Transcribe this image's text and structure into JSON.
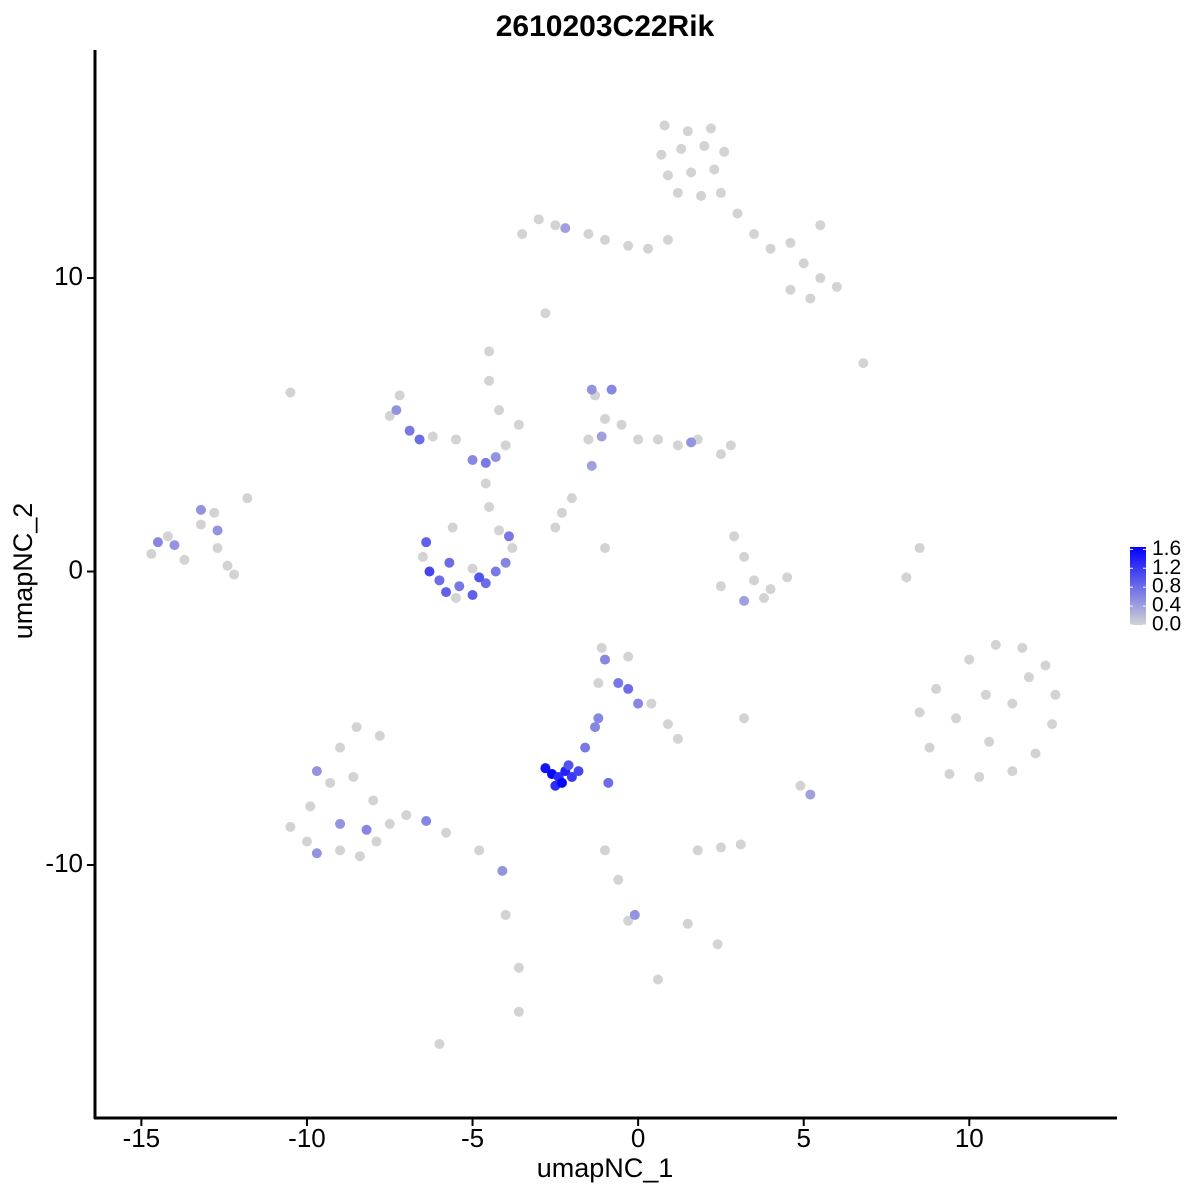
{
  "chart_data": {
    "type": "scatter",
    "title": "2610203C22Rik",
    "x_label": "umapNC_1",
    "y_label": "umapNC_2",
    "xlim": [
      -16.4,
      14.46
    ],
    "ylim": [
      -18.62,
      17.77
    ],
    "xticks": [
      -15,
      -10,
      -5,
      0,
      5,
      10
    ],
    "yticks": [
      -10,
      0,
      10
    ],
    "color_low": "#d3d3d3",
    "color_high": "#0000ff",
    "clim": [
      0,
      1.65
    ],
    "cticks": [
      {
        "value": 0,
        "label": "0.0"
      },
      0.4,
      0.8,
      1.2,
      1.6
    ],
    "x": [
      0.8,
      1.5,
      2.2,
      0.7,
      1.3,
      2,
      2.6,
      0.9,
      1.6,
      2.3,
      1.2,
      1.9,
      2.5,
      3,
      3.5,
      4,
      4.6,
      5,
      5.5,
      6,
      5.2,
      4.6,
      5.5,
      0.9,
      0.3,
      -0.3,
      -3.5,
      -3,
      -2.5,
      -1.5,
      -1,
      -2.2,
      -2.8,
      6.8,
      -10.5,
      -7.5,
      -7.2,
      -6.2,
      -5.5,
      -4,
      -4.2,
      -4.5,
      -4.5,
      -3.6,
      -7.3,
      -6.9,
      -6.6,
      -5,
      -4.6,
      -4.3,
      -4.6,
      -4.5,
      -6.5,
      -5.5,
      -3.8,
      -4.2,
      -5.6,
      -5,
      -6.4,
      -6.3,
      -6,
      -5.8,
      -5.4,
      -5,
      -4.6,
      -4.3,
      -4,
      -3.9,
      -5.7,
      -4.8,
      -14.7,
      -14.2,
      -13.7,
      -13.2,
      -12.7,
      -12.4,
      -12.8,
      -11.8,
      -12.2,
      -14.5,
      -14,
      -13.2,
      -12.7,
      -1.3,
      -1,
      -0.5,
      0,
      0.6,
      1.2,
      1.8,
      2.5,
      2.8,
      -1.5,
      -2,
      -2.3,
      -1.4,
      -0.8,
      -1.1,
      1.6,
      -1.4,
      -2.5,
      -1,
      2.9,
      3.2,
      3.5,
      2.5,
      4,
      4.5,
      3.8,
      3.2,
      8.1,
      8.5,
      9,
      10,
      10.8,
      11.6,
      12.3,
      12.6,
      12.5,
      12,
      11.3,
      10.3,
      9.4,
      8.8,
      8.5,
      9.6,
      10.5,
      11.3,
      10.6,
      11.8,
      -1.1,
      -0.3,
      -1.2,
      0.4,
      0.9,
      1.2,
      -1,
      -0.6,
      -0.3,
      0,
      -1.2,
      -2.8,
      -2.6,
      -2.4,
      -2.2,
      -2,
      -1.8,
      -2.5,
      -2.3,
      -2.1,
      -1.6,
      -1.3,
      -0.9,
      -10.5,
      -10,
      -9,
      -8.4,
      -7.9,
      -7.5,
      -8,
      -8.6,
      -9.3,
      -9.9,
      -9,
      -8.5,
      -7.8,
      -7,
      -5.8,
      -4.8,
      -9.7,
      -9,
      -8.2,
      -9.7,
      -6.4,
      -4.1,
      -4,
      -3.6,
      -3.6,
      -6,
      -1,
      -0.6,
      -0.3,
      1.5,
      2.4,
      0.6,
      -0.1,
      1.8,
      2.5,
      3.1,
      4.9,
      5.2,
      3.2
    ],
    "values": [
      15.2,
      15,
      15.1,
      14.2,
      14.4,
      14.5,
      14.3,
      13.5,
      13.6,
      13.7,
      12.9,
      12.8,
      12.9,
      12.2,
      11.5,
      11,
      11.2,
      10.5,
      10,
      9.7,
      9.3,
      9.6,
      11.8,
      11.3,
      11,
      11.1,
      11.5,
      12,
      11.8,
      11.5,
      11.3,
      11.7,
      8.8,
      7.1,
      6.1,
      5.3,
      6,
      4.6,
      4.5,
      4.3,
      5.5,
      6.5,
      7.5,
      5,
      5.5,
      4.8,
      4.5,
      3.8,
      3.7,
      3.9,
      3,
      2.2,
      0.5,
      -0.9,
      0.8,
      1.4,
      1.5,
      0.1,
      1,
      0,
      -0.3,
      -0.7,
      -0.5,
      -0.8,
      -0.4,
      0,
      0.3,
      1.2,
      0.3,
      -0.2,
      0.6,
      1.2,
      0.4,
      1.6,
      0.8,
      0.2,
      2,
      2.5,
      -0.1,
      1,
      0.9,
      2.1,
      1.4,
      6,
      5.2,
      5,
      4.5,
      4.5,
      4.3,
      4.5,
      4,
      4.3,
      4.5,
      2.5,
      2,
      6.2,
      6.2,
      4.6,
      4.4,
      3.6,
      1.5,
      0.8,
      1.2,
      0.5,
      -0.3,
      -0.5,
      -0.6,
      -0.2,
      -0.9,
      -1,
      -0.2,
      0.8,
      -4,
      -3,
      -2.5,
      -2.6,
      -3.2,
      -4.2,
      -5.2,
      -6.2,
      -6.8,
      -7,
      -6.9,
      -6,
      -4.8,
      -5,
      -4.2,
      -4.5,
      -5.8,
      -3.6,
      -2.6,
      -2.9,
      -3.8,
      -4.5,
      -5.2,
      -5.7,
      -3,
      -3.8,
      -4,
      -4.5,
      -5,
      -6.7,
      -6.9,
      -7,
      -6.8,
      -7,
      -6.8,
      -7.3,
      -7.2,
      -6.6,
      -6,
      -5.3,
      -7.2,
      -8.7,
      -9.2,
      -9.5,
      -9.7,
      -9.2,
      -8.6,
      -7.8,
      -7,
      -7.2,
      -8,
      -6,
      -5.3,
      -5.6,
      -8.3,
      -8.9,
      -9.5,
      -6.8,
      -8.6,
      -8.8,
      -9.6,
      -8.5,
      -10.2,
      -11.7,
      -13.5,
      -15,
      -16.1,
      -9.5,
      -10.5,
      -11.9,
      -12,
      -12.7,
      -13.9,
      -11.7,
      -9.5,
      -9.4,
      -9.3,
      -7.3,
      -7.6,
      -5
    ],
    "expression": [
      0,
      0,
      0,
      0,
      0,
      0,
      0,
      0,
      0,
      0,
      0,
      0,
      0,
      0,
      0,
      0,
      0,
      0,
      0,
      0,
      0,
      0,
      0,
      0,
      0,
      0,
      0,
      0,
      0,
      0,
      0,
      0.4,
      0,
      0,
      0,
      0,
      0,
      0,
      0,
      0,
      0,
      0,
      0,
      0,
      0.5,
      0.7,
      0.8,
      0.6,
      0.7,
      0.5,
      0,
      0,
      0,
      0,
      0,
      0,
      0,
      0,
      0.9,
      1.1,
      0.8,
      0.9,
      0.7,
      0.9,
      0.8,
      0.7,
      0.6,
      0.7,
      0.8,
      1.0,
      0,
      0,
      0,
      0,
      0,
      0,
      0,
      0,
      0,
      0.6,
      0.5,
      0.5,
      0.5,
      0,
      0,
      0,
      0,
      0,
      0,
      0,
      0,
      0,
      0,
      0,
      0,
      0.5,
      0.6,
      0.4,
      0.5,
      0.4,
      0,
      0,
      0,
      0,
      0,
      0,
      0,
      0,
      0,
      0.4,
      0,
      0,
      0,
      0,
      0,
      0,
      0,
      0,
      0,
      0,
      0,
      0,
      0,
      0,
      0,
      0,
      0,
      0,
      0,
      0,
      0,
      0,
      0,
      0,
      0,
      0,
      0.6,
      0.7,
      0.8,
      0.6,
      0.6,
      1.5,
      1.6,
      1.3,
      1.4,
      1.2,
      1.1,
      1.3,
      1.6,
      1.0,
      0.7,
      0.6,
      0.8,
      0,
      0,
      0,
      0,
      0,
      0,
      0,
      0,
      0,
      0,
      0,
      0,
      0,
      0,
      0,
      0,
      0.5,
      0.5,
      0.6,
      0.5,
      0.6,
      0.5,
      0,
      0,
      0,
      0,
      0,
      0,
      0,
      0,
      0,
      0,
      0.5,
      0,
      0,
      0,
      0,
      0.4,
      0
    ]
  }
}
